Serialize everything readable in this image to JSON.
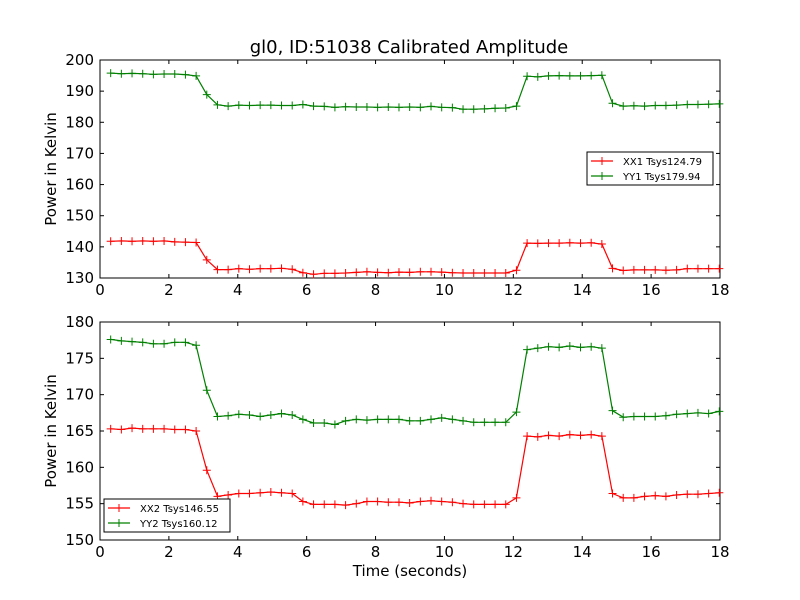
{
  "title": "gl0, ID:51038 Calibrated Amplitude",
  "colors": {
    "red": "#ff0000",
    "green": "#008000"
  },
  "chart_data": [
    {
      "type": "line",
      "xlim": [
        0,
        18
      ],
      "ylim": [
        130,
        200
      ],
      "xticks": [
        0,
        2,
        4,
        6,
        8,
        10,
        12,
        14,
        16,
        18
      ],
      "yticks": [
        130,
        140,
        150,
        160,
        170,
        180,
        190,
        200
      ],
      "xlabel": "",
      "ylabel": "Power in Kelvin",
      "legend_position": "center-right",
      "x": [
        0.31,
        0.62,
        0.93,
        1.24,
        1.55,
        1.86,
        2.17,
        2.48,
        2.79,
        3.1,
        3.41,
        3.72,
        4.03,
        4.34,
        4.65,
        4.96,
        5.27,
        5.58,
        5.89,
        6.2,
        6.51,
        6.82,
        7.13,
        7.44,
        7.75,
        8.06,
        8.37,
        8.68,
        8.99,
        9.3,
        9.61,
        9.92,
        10.23,
        10.54,
        10.85,
        11.16,
        11.47,
        11.78,
        12.09,
        12.4,
        12.71,
        13.02,
        13.33,
        13.64,
        13.95,
        14.26,
        14.57,
        14.88,
        15.19,
        15.5,
        15.81,
        16.12,
        16.43,
        16.74,
        17.05,
        17.36,
        17.67,
        17.98
      ],
      "series": [
        {
          "name": "XX1 Tsys124.79",
          "color": "#ff0000",
          "values": [
            141.8,
            141.9,
            141.8,
            141.9,
            141.8,
            141.9,
            141.6,
            141.5,
            141.4,
            135.8,
            132.7,
            132.7,
            133.0,
            132.8,
            133.0,
            133.0,
            133.1,
            132.8,
            131.7,
            131.2,
            131.5,
            131.5,
            131.6,
            131.8,
            132.0,
            131.8,
            131.7,
            131.9,
            131.8,
            132.0,
            132.0,
            131.9,
            131.7,
            131.6,
            131.6,
            131.6,
            131.6,
            131.6,
            132.5,
            141.2,
            141.1,
            141.2,
            141.2,
            141.3,
            141.2,
            141.3,
            140.9,
            133.1,
            132.4,
            132.6,
            132.6,
            132.6,
            132.5,
            132.6,
            133.0,
            133.0,
            133.0,
            133.0
          ]
        },
        {
          "name": "YY1 Tsys179.94",
          "color": "#008000",
          "values": [
            195.8,
            195.6,
            195.7,
            195.6,
            195.4,
            195.5,
            195.5,
            195.3,
            194.9,
            188.9,
            185.6,
            185.2,
            185.5,
            185.4,
            185.5,
            185.5,
            185.4,
            185.4,
            185.7,
            185.2,
            185.1,
            184.8,
            185.0,
            184.9,
            184.9,
            184.8,
            184.9,
            184.8,
            184.9,
            184.8,
            185.1,
            184.8,
            184.7,
            184.2,
            184.2,
            184.3,
            184.5,
            184.6,
            185.2,
            194.8,
            194.6,
            194.9,
            195.0,
            194.9,
            194.9,
            195.0,
            195.1,
            186.1,
            185.2,
            185.3,
            185.2,
            185.4,
            185.4,
            185.5,
            185.7,
            185.7,
            185.8,
            185.9
          ]
        }
      ]
    },
    {
      "type": "line",
      "xlim": [
        0,
        18
      ],
      "ylim": [
        150,
        180
      ],
      "xticks": [
        0,
        2,
        4,
        6,
        8,
        10,
        12,
        14,
        16,
        18
      ],
      "yticks": [
        150,
        155,
        160,
        165,
        170,
        175,
        180
      ],
      "xlabel": "Time (seconds)",
      "ylabel": "Power in Kelvin",
      "legend_position": "lower-left",
      "x": [
        0.31,
        0.62,
        0.93,
        1.24,
        1.55,
        1.86,
        2.17,
        2.48,
        2.79,
        3.1,
        3.41,
        3.72,
        4.03,
        4.34,
        4.65,
        4.96,
        5.27,
        5.58,
        5.89,
        6.2,
        6.51,
        6.82,
        7.13,
        7.44,
        7.75,
        8.06,
        8.37,
        8.68,
        8.99,
        9.3,
        9.61,
        9.92,
        10.23,
        10.54,
        10.85,
        11.16,
        11.47,
        11.78,
        12.09,
        12.4,
        12.71,
        13.02,
        13.33,
        13.64,
        13.95,
        14.26,
        14.57,
        14.88,
        15.19,
        15.5,
        15.81,
        16.12,
        16.43,
        16.74,
        17.05,
        17.36,
        17.67,
        17.98
      ],
      "series": [
        {
          "name": "XX2 Tsys146.55",
          "color": "#ff0000",
          "values": [
            165.3,
            165.2,
            165.4,
            165.3,
            165.3,
            165.3,
            165.2,
            165.2,
            165.0,
            159.6,
            156.0,
            156.2,
            156.4,
            156.4,
            156.5,
            156.6,
            156.5,
            156.4,
            155.3,
            154.9,
            154.9,
            154.9,
            154.8,
            155.0,
            155.3,
            155.3,
            155.2,
            155.2,
            155.1,
            155.3,
            155.4,
            155.3,
            155.2,
            155.0,
            154.9,
            154.9,
            154.9,
            154.9,
            155.8,
            164.3,
            164.2,
            164.4,
            164.3,
            164.5,
            164.4,
            164.5,
            164.3,
            156.4,
            155.8,
            155.8,
            156.0,
            156.1,
            156.0,
            156.2,
            156.3,
            156.3,
            156.4,
            156.5
          ]
        },
        {
          "name": "YY2 Tsys160.12",
          "color": "#008000",
          "values": [
            177.6,
            177.4,
            177.3,
            177.2,
            177.0,
            177.0,
            177.2,
            177.2,
            176.8,
            170.6,
            167.0,
            167.1,
            167.3,
            167.2,
            167.0,
            167.2,
            167.4,
            167.2,
            166.6,
            166.1,
            166.1,
            165.9,
            166.4,
            166.6,
            166.5,
            166.6,
            166.6,
            166.6,
            166.4,
            166.4,
            166.6,
            166.8,
            166.6,
            166.4,
            166.2,
            166.2,
            166.2,
            166.2,
            167.6,
            176.2,
            176.4,
            176.6,
            176.5,
            176.7,
            176.5,
            176.6,
            176.4,
            167.8,
            166.9,
            167.0,
            167.0,
            167.0,
            167.1,
            167.3,
            167.4,
            167.5,
            167.4,
            167.7
          ]
        }
      ]
    }
  ]
}
